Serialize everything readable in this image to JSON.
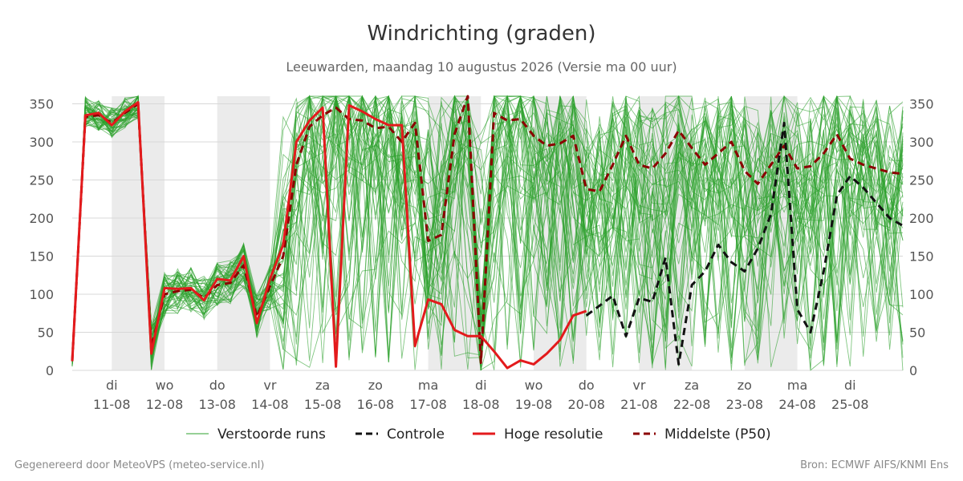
{
  "chart_data": {
    "type": "line",
    "title": "Windrichting (graden)",
    "subtitle": "Leeuwarden, maandag 10 augustus 2026 (Versie ma 00 uur)",
    "xlabel": "",
    "ylabel": "",
    "ylim": [
      0,
      360
    ],
    "yticks": [
      0,
      50,
      100,
      150,
      200,
      250,
      300,
      350
    ],
    "x_range": [
      -0.75,
      15
    ],
    "x_ticks": [
      {
        "day": "di",
        "date": "11-08",
        "x": 0
      },
      {
        "day": "wo",
        "date": "12-08",
        "x": 1
      },
      {
        "day": "do",
        "date": "13-08",
        "x": 2
      },
      {
        "day": "vr",
        "date": "14-08",
        "x": 3
      },
      {
        "day": "za",
        "date": "15-08",
        "x": 4
      },
      {
        "day": "zo",
        "date": "16-08",
        "x": 5
      },
      {
        "day": "ma",
        "date": "17-08",
        "x": 6
      },
      {
        "day": "di",
        "date": "18-08",
        "x": 7
      },
      {
        "day": "wo",
        "date": "19-08",
        "x": 8
      },
      {
        "day": "do",
        "date": "20-08",
        "x": 9
      },
      {
        "day": "vr",
        "date": "21-08",
        "x": 10
      },
      {
        "day": "za",
        "date": "22-08",
        "x": 11
      },
      {
        "day": "zo",
        "date": "23-08",
        "x": 12
      },
      {
        "day": "ma",
        "date": "24-08",
        "x": 13
      },
      {
        "day": "di",
        "date": "25-08",
        "x": 14
      }
    ],
    "weekend_bands": [
      [
        0,
        1
      ],
      [
        2,
        3
      ],
      [
        6,
        7
      ],
      [
        8,
        9
      ],
      [
        10,
        11
      ],
      [
        12,
        13
      ]
    ],
    "grid": true,
    "legend": {
      "placement": "bottom",
      "items": [
        {
          "label": "Verstoorde runs",
          "color": "#2ca02c",
          "style": "thin"
        },
        {
          "label": "Controle",
          "color": "#111111",
          "style": "dashed"
        },
        {
          "label": "Hoge resolutie",
          "color": "#e31a1c",
          "style": "solid"
        },
        {
          "label": "Middelste (P50)",
          "color": "#8b0000",
          "style": "dashed"
        }
      ]
    },
    "series": [
      {
        "name": "Hoge resolutie",
        "color": "#e31a1c",
        "dash": false,
        "x": [
          -0.75,
          -0.5,
          -0.25,
          0,
          0.25,
          0.5,
          0.75,
          1,
          1.25,
          1.5,
          1.75,
          2,
          2.25,
          2.5,
          2.75,
          3,
          3.25,
          3.5,
          3.75,
          4,
          4.25,
          4.5,
          4.75,
          5,
          5.25,
          5.5,
          5.75,
          6,
          6.25,
          6.5,
          6.75,
          7,
          7.25,
          7.5,
          7.75,
          8,
          8.25,
          8.5,
          8.75,
          9
        ],
        "y": [
          12,
          335,
          338,
          322,
          340,
          352,
          22,
          108,
          107,
          108,
          92,
          120,
          118,
          150,
          62,
          120,
          165,
          300,
          328,
          345,
          5,
          348,
          340,
          330,
          322,
          322,
          32,
          93,
          87,
          53,
          45,
          45,
          25,
          3,
          13,
          8,
          22,
          40,
          72,
          78
        ]
      },
      {
        "name": "Middelste (P50)",
        "color": "#8b0000",
        "dash": true,
        "x": [
          -0.75,
          -0.5,
          -0.25,
          0,
          0.25,
          0.5,
          0.75,
          1,
          1.25,
          1.5,
          1.75,
          2,
          2.25,
          2.5,
          2.75,
          3,
          3.25,
          3.5,
          3.75,
          4,
          4.25,
          4.5,
          4.75,
          5,
          5.25,
          5.5,
          5.75,
          6,
          6.25,
          6.5,
          6.75,
          7,
          7.25,
          7.5,
          7.75,
          8,
          8.25,
          8.5,
          8.75,
          9,
          9.25,
          9.5,
          9.75,
          10,
          10.25,
          10.5,
          10.75,
          11,
          11.25,
          11.5,
          11.75,
          12,
          12.25,
          12.5,
          12.75,
          13,
          13.25,
          13.5,
          13.75,
          14,
          14.25,
          14.5,
          14.75,
          15
        ],
        "y": [
          12,
          333,
          335,
          325,
          338,
          350,
          30,
          100,
          104,
          106,
          95,
          112,
          115,
          138,
          70,
          110,
          150,
          270,
          320,
          335,
          345,
          330,
          328,
          318,
          320,
          300,
          325,
          170,
          178,
          310,
          360,
          10,
          338,
          328,
          330,
          308,
          295,
          298,
          308,
          238,
          235,
          270,
          308,
          270,
          265,
          285,
          315,
          292,
          270,
          285,
          300,
          262,
          245,
          270,
          295,
          265,
          268,
          285,
          310,
          278,
          270,
          265,
          260,
          258
        ]
      },
      {
        "name": "Controle",
        "color": "#111111",
        "dash": true,
        "x": [
          9,
          9.25,
          9.5,
          9.75,
          10,
          10.25,
          10.5,
          10.75,
          11,
          11.25,
          11.5,
          11.75,
          12,
          12.25,
          12.5,
          12.75,
          13,
          13.25,
          13.5,
          13.75,
          14,
          14.25,
          14.5,
          14.75,
          15
        ],
        "y": [
          72,
          85,
          98,
          45,
          95,
          90,
          148,
          8,
          112,
          130,
          165,
          142,
          130,
          160,
          205,
          325,
          80,
          50,
          130,
          230,
          255,
          240,
          220,
          200,
          190
        ]
      }
    ]
  },
  "footer": {
    "left": "Gegenereerd door MeteoVPS (meteo-service.nl)",
    "right": "Bron: ECMWF AIFS/KNMI Ens"
  }
}
